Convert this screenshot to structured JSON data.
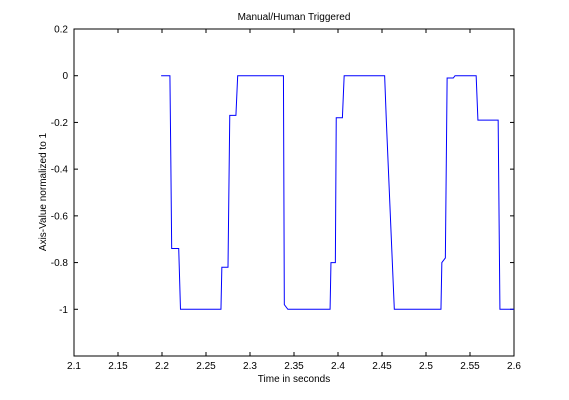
{
  "chart_data": {
    "type": "line",
    "title": "Manual/Human Triggered",
    "x_label": "Time in seconds",
    "y_label": "Axis-Value normalized to 1",
    "x": [
      2.199,
      2.209,
      2.21,
      2.211,
      2.219,
      2.221,
      2.267,
      2.268,
      2.275,
      2.277,
      2.284,
      2.286,
      2.338,
      2.339,
      2.343,
      2.391,
      2.392,
      2.397,
      2.398,
      2.405,
      2.407,
      2.453,
      2.455,
      2.464,
      2.517,
      2.518,
      2.522,
      2.524,
      2.531,
      2.533,
      2.557,
      2.559,
      2.582,
      2.584,
      2.6
    ],
    "values": [
      0,
      0,
      -0.35,
      -0.74,
      -0.74,
      -1,
      -1,
      -0.82,
      -0.82,
      -0.17,
      -0.17,
      0,
      0,
      -0.98,
      -1,
      -1,
      -0.8,
      -0.8,
      -0.18,
      -0.18,
      0,
      0,
      -0.2,
      -1,
      -1,
      -0.8,
      -0.78,
      -0.01,
      -0.01,
      0,
      0,
      -0.19,
      -0.19,
      -1,
      -1
    ],
    "color": "#0000ff",
    "xlim": [
      2.1,
      2.6
    ],
    "xticks": [
      2.1,
      2.15,
      2.2,
      2.25,
      2.3,
      2.35,
      2.4,
      2.45,
      2.5,
      2.55,
      2.6
    ],
    "ylim": [
      -1.2,
      0.2
    ],
    "yticks": [
      -1,
      -0.8,
      -0.6,
      -0.4,
      -0.2,
      0,
      0.2
    ],
    "grid": false
  }
}
